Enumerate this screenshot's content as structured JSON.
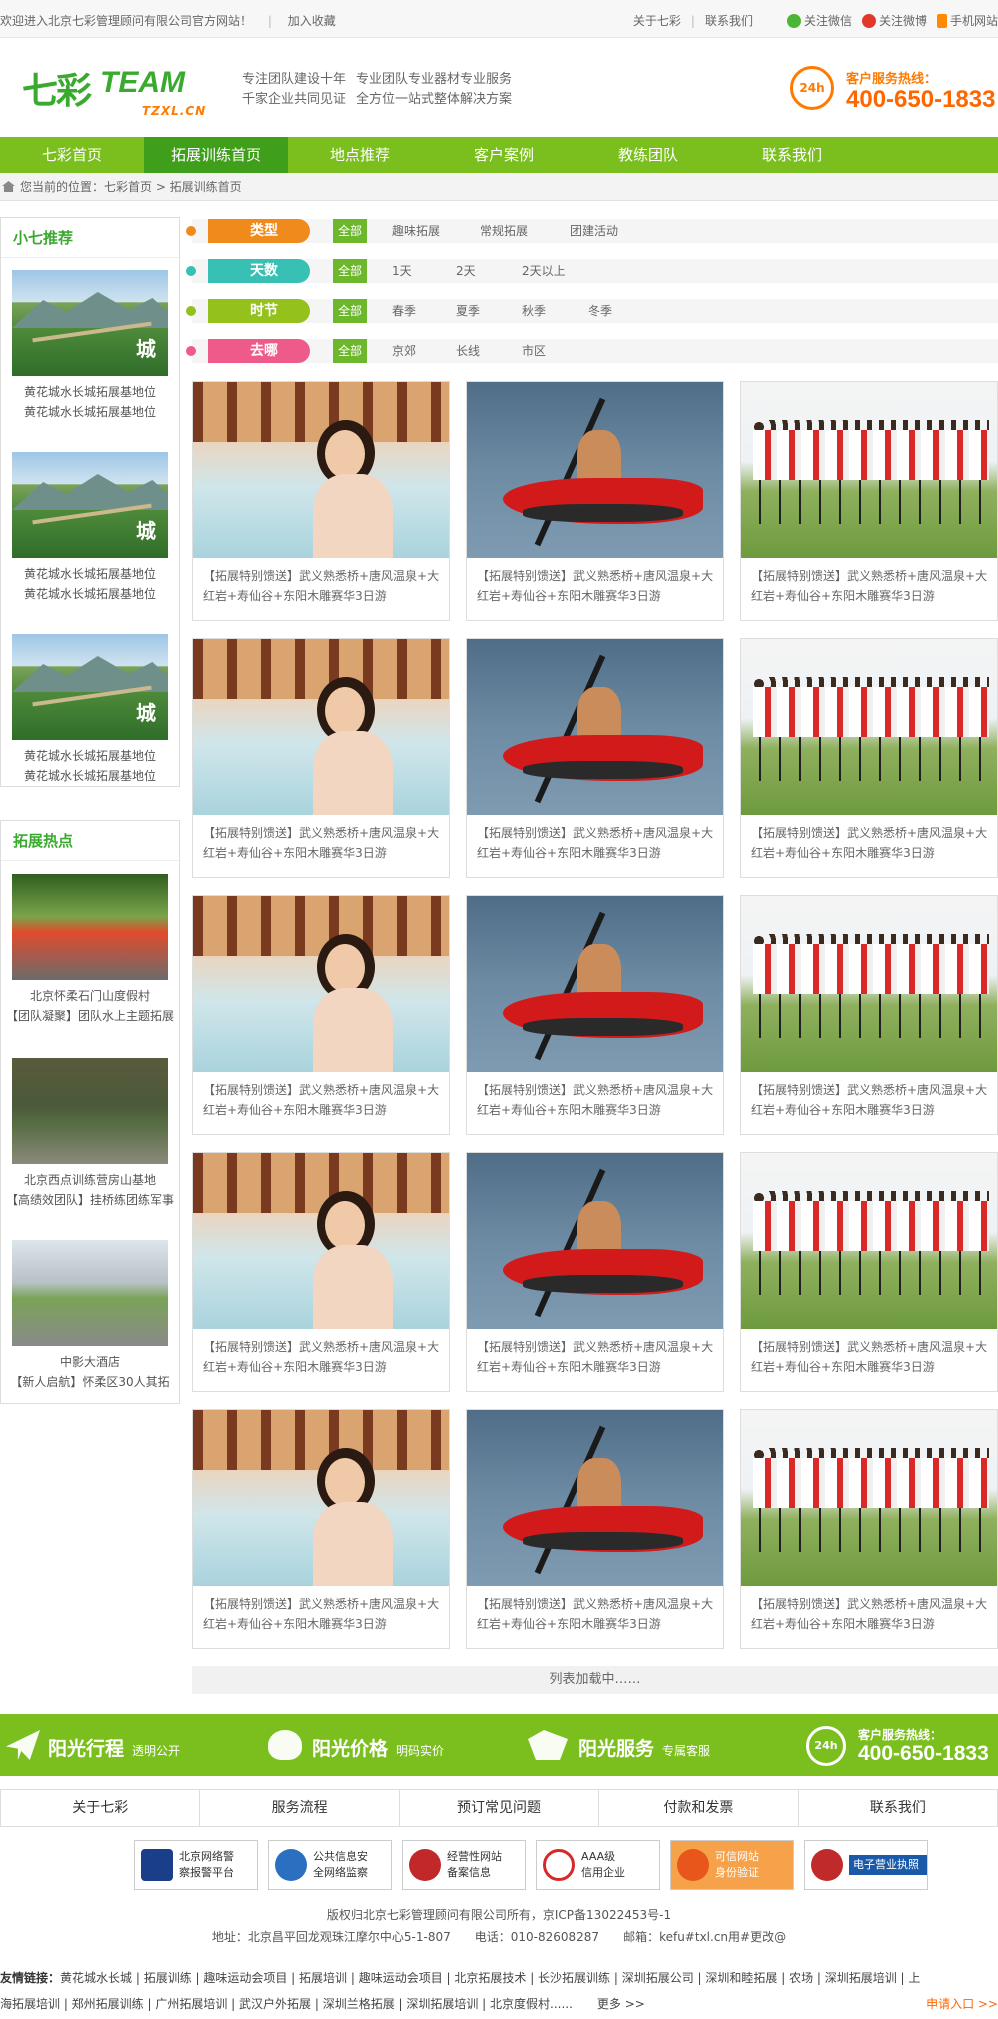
{
  "topbar": {
    "welcome": "欢迎进入北京七彩管理顾问有限公司官方网站！",
    "bookmark": "加入收藏",
    "about": "关于七彩",
    "contact": "联系我们",
    "wechat": "关注微信",
    "weibo": "关注微博",
    "mobile": "手机网站"
  },
  "header": {
    "logo_cn": "七彩",
    "logo_en": "TEAM",
    "logo_url": "TZXL.CN",
    "slogan1a": "专注团队建设十年",
    "slogan1b": "千家企业共同见证",
    "slogan2a": "专业团队专业器材专业服务",
    "slogan2b": "全方位一站式整体解决方案",
    "hotline_badge": "24h",
    "hotline_label": "客户服务热线：",
    "hotline_number": "400-650-1833"
  },
  "nav": [
    "七彩首页",
    "拓展训练首页",
    "地点推荐",
    "客户案例",
    "教练团队",
    "联系我们"
  ],
  "breadcrumb": "您当前的位置：七彩首页 > 拓展训练首页",
  "sidebar": {
    "recommend_title": "小七推荐",
    "recommend": [
      {
        "line1": "黄花城水长城拓展基地位",
        "line2": "黄花城水长城拓展基地位"
      },
      {
        "line1": "黄花城水长城拓展基地位",
        "line2": "黄花城水长城拓展基地位"
      },
      {
        "line1": "黄花城水长城拓展基地位",
        "line2": "黄花城水长城拓展基地位"
      }
    ],
    "stamp": "城",
    "hot_title": "拓展热点",
    "hot": [
      {
        "line1": "北京怀柔石门山度假村",
        "line2": "【团队凝聚】团队水上主题拓展"
      },
      {
        "line1": "北京西点训练营房山基地",
        "line2": "【高绩效团队】挂桥练团练军事"
      },
      {
        "line1": "中影大酒店",
        "line2": "【新人启航】怀柔区30人其拓"
      }
    ]
  },
  "filters": [
    {
      "label": "类型",
      "all": "全部",
      "options": [
        "趣味拓展",
        "常规拓展",
        "团建活动"
      ],
      "color": "#f08a1c"
    },
    {
      "label": "天数",
      "all": "全部",
      "options": [
        "1天",
        "2天",
        "2天以上"
      ],
      "color": "#38c0b4"
    },
    {
      "label": "时节",
      "all": "全部",
      "options": [
        "春季",
        "夏季",
        "秋季",
        "冬季"
      ],
      "color": "#94c11c"
    },
    {
      "label": "去哪",
      "all": "全部",
      "options": [
        "京郊",
        "长线",
        "市区"
      ],
      "color": "#ee5a8a"
    }
  ],
  "card_text_1": "【拓展特别馈送】武义熟悉桥+唐风温泉+大",
  "card_text_2": "红岩+寿仙谷+东阳木雕赛华3日游",
  "loading": "列表加载中……",
  "promo": {
    "p1": "阳光行程",
    "p1s": "透明公开",
    "p2": "阳光价格",
    "p2s": "明码实价",
    "p3": "阳光服务",
    "p3s": "专属客服",
    "badge": "24h",
    "label": "客户服务热线：",
    "number": "400-650-1833"
  },
  "footer_links": [
    "关于七彩",
    "服务流程",
    "预订常见问题",
    "付款和发票",
    "联系我们"
  ],
  "badges": [
    {
      "l1": "北京网络警",
      "l2": "察报警平台",
      "color": "#1a3e8a"
    },
    {
      "l1": "公共信息安",
      "l2": "全网络监察",
      "color": "#2a6fc0"
    },
    {
      "l1": "经营性网站",
      "l2": "备案信息",
      "color": "#c0282a"
    },
    {
      "l1": "AAA级",
      "l2": "信用企业",
      "color": "#d62a2a"
    },
    {
      "l1": "可信网站",
      "l2": "身份验证",
      "color": "#e8561c"
    },
    {
      "l1": "电子营业执照",
      "l2": "",
      "color": "#c02a2a"
    }
  ],
  "copyright": "版权归北京七彩管理顾问有限公司所有，京ICP备13022453号-1",
  "address": "地址：北京昌平回龙观珠江摩尔中心5-1-807　　电话：010-82608287　　邮箱：kefu#txl.cn用#更改@",
  "friend_label": "友情链接：",
  "friend_row1": "黄花城水长城 | 拓展训练 | 趣味运动会项目 | 拓展培训 | 趣味运动会项目 | 北京拓展技术 | 长沙拓展训练 | 深圳拓展公司 | 深圳和睦拓展 | 农场 | 深圳拓展培训 | 上",
  "friend_row2": "海拓展培训 | 郑州拓展训练 | 广州拓展培训 | 武汉户外拓展 | 深圳兰格拓展 | 深圳拓展培训 | 北京度假村......　　更多 >>",
  "apply": "申请入口 >>"
}
